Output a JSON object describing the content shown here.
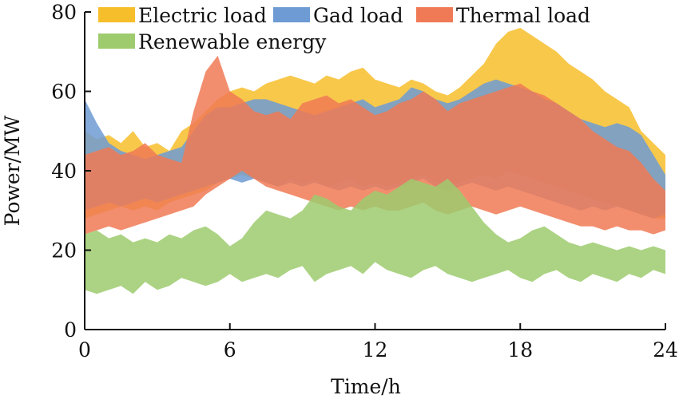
{
  "chart_data": {
    "type": "area",
    "title": "",
    "xlabel": "Time/h",
    "ylabel": "Power/MW",
    "xlim": [
      0,
      24
    ],
    "ylim": [
      0,
      80
    ],
    "xticks": [
      0,
      6,
      12,
      18,
      24
    ],
    "yticks": [
      0,
      20,
      40,
      60,
      80
    ],
    "grid": false,
    "legend_position": "top-left",
    "series": [
      {
        "name": "Electric load",
        "color": "#F7BE2B",
        "x": [
          0,
          0.5,
          1,
          1.5,
          2,
          2.5,
          3,
          3.5,
          4,
          4.5,
          5,
          5.5,
          6,
          6.5,
          7,
          7.5,
          8,
          8.5,
          9,
          9.5,
          10,
          10.5,
          11,
          11.5,
          12,
          12.5,
          13,
          13.5,
          14,
          14.5,
          15,
          15.5,
          16,
          16.5,
          17,
          17.5,
          18,
          18.5,
          19,
          19.5,
          20,
          20.5,
          21,
          21.5,
          22,
          22.5,
          23,
          23.5,
          24
        ],
        "upper": [
          50,
          48,
          49,
          47,
          50,
          46,
          47,
          45,
          50,
          52,
          55,
          58,
          60,
          61,
          60,
          62,
          63,
          64,
          63,
          62,
          64,
          63,
          65,
          66,
          63,
          62,
          61,
          63,
          62,
          60,
          59,
          61,
          64,
          67,
          72,
          75,
          76,
          74,
          72,
          70,
          67,
          65,
          63,
          60,
          58,
          56,
          50,
          47,
          44
        ],
        "lower": [
          28,
          29,
          30,
          31,
          30,
          31,
          30,
          32,
          33,
          34,
          35,
          37,
          38,
          39,
          38,
          37,
          36,
          38,
          37,
          38,
          36,
          37,
          38,
          36,
          37,
          36,
          37,
          38,
          39,
          37,
          36,
          37,
          38,
          39,
          38,
          40,
          39,
          38,
          37,
          36,
          35,
          34,
          33,
          32,
          31,
          30,
          29,
          28,
          28
        ]
      },
      {
        "name": "Gad load",
        "color": "#6E9BD4",
        "x": [
          0,
          0.5,
          1,
          1.5,
          2,
          2.5,
          3,
          3.5,
          4,
          4.5,
          5,
          5.5,
          6,
          6.5,
          7,
          7.5,
          8,
          8.5,
          9,
          9.5,
          10,
          10.5,
          11,
          11.5,
          12,
          12.5,
          13,
          13.5,
          14,
          14.5,
          15,
          15.5,
          16,
          16.5,
          17,
          17.5,
          18,
          18.5,
          19,
          19.5,
          20,
          20.5,
          21,
          21.5,
          22,
          22.5,
          23,
          23.5,
          24
        ],
        "upper": [
          58,
          52,
          47,
          45,
          44,
          43,
          44,
          45,
          46,
          50,
          54,
          56,
          56,
          57,
          58,
          58,
          57,
          56,
          55,
          54,
          55,
          56,
          57,
          58,
          56,
          57,
          58,
          61,
          60,
          58,
          57,
          58,
          60,
          62,
          63,
          62,
          61,
          60,
          58,
          57,
          55,
          53,
          52,
          51,
          52,
          51,
          49,
          44,
          39
        ],
        "lower": [
          30,
          31,
          32,
          31,
          32,
          33,
          32,
          33,
          34,
          35,
          36,
          37,
          38,
          37,
          38,
          37,
          36,
          37,
          36,
          37,
          36,
          35,
          36,
          35,
          36,
          35,
          36,
          37,
          38,
          36,
          35,
          36,
          37,
          36,
          35,
          36,
          35,
          34,
          33,
          32,
          31,
          30,
          31,
          30,
          31,
          30,
          29,
          28,
          29
        ]
      },
      {
        "name": "Thermal load",
        "color": "#F07A55",
        "x": [
          0,
          0.5,
          1,
          1.5,
          2,
          2.5,
          3,
          3.5,
          4,
          4.5,
          5,
          5.5,
          6,
          6.5,
          7,
          7.5,
          8,
          8.5,
          9,
          9.5,
          10,
          10.5,
          11,
          11.5,
          12,
          12.5,
          13,
          13.5,
          14,
          14.5,
          15,
          15.5,
          16,
          16.5,
          17,
          17.5,
          18,
          18.5,
          19,
          19.5,
          20,
          20.5,
          21,
          21.5,
          22,
          22.5,
          23,
          23.5,
          24
        ],
        "upper": [
          44,
          45,
          46,
          44,
          45,
          47,
          44,
          43,
          42,
          55,
          65,
          69,
          60,
          58,
          55,
          54,
          55,
          53,
          57,
          58,
          59,
          57,
          58,
          56,
          54,
          55,
          57,
          58,
          60,
          58,
          55,
          57,
          58,
          59,
          60,
          61,
          62,
          60,
          59,
          57,
          55,
          53,
          50,
          48,
          46,
          45,
          42,
          38,
          35
        ],
        "lower": [
          24,
          25,
          26,
          25,
          26,
          27,
          28,
          29,
          30,
          31,
          34,
          36,
          38,
          40,
          38,
          36,
          35,
          34,
          33,
          32,
          31,
          30,
          31,
          30,
          31,
          30,
          30,
          31,
          32,
          30,
          29,
          30,
          31,
          30,
          29,
          30,
          31,
          30,
          29,
          28,
          27,
          26,
          26,
          25,
          26,
          25,
          25,
          24,
          25
        ]
      },
      {
        "name": "Renewable energy",
        "color": "#9DCB6E",
        "x": [
          0,
          0.5,
          1,
          1.5,
          2,
          2.5,
          3,
          3.5,
          4,
          4.5,
          5,
          5.5,
          6,
          6.5,
          7,
          7.5,
          8,
          8.5,
          9,
          9.5,
          10,
          10.5,
          11,
          11.5,
          12,
          12.5,
          13,
          13.5,
          14,
          14.5,
          15,
          15.5,
          16,
          16.5,
          17,
          17.5,
          18,
          18.5,
          19,
          19.5,
          20,
          20.5,
          21,
          21.5,
          22,
          22.5,
          23,
          23.5,
          24
        ],
        "upper": [
          24,
          25,
          23,
          24,
          22,
          23,
          22,
          24,
          23,
          25,
          26,
          24,
          21,
          23,
          27,
          30,
          29,
          28,
          30,
          34,
          33,
          31,
          30,
          33,
          35,
          34,
          36,
          38,
          37,
          36,
          38,
          35,
          31,
          27,
          24,
          22,
          23,
          25,
          26,
          24,
          22,
          21,
          22,
          21,
          20,
          21,
          20,
          21,
          20
        ],
        "lower": [
          10,
          9,
          10,
          11,
          9,
          12,
          10,
          11,
          13,
          12,
          11,
          12,
          14,
          12,
          13,
          14,
          13,
          15,
          16,
          12,
          14,
          15,
          16,
          14,
          17,
          15,
          14,
          13,
          15,
          16,
          14,
          13,
          12,
          13,
          14,
          15,
          13,
          12,
          14,
          15,
          13,
          12,
          14,
          13,
          12,
          14,
          13,
          15,
          14
        ]
      }
    ]
  }
}
